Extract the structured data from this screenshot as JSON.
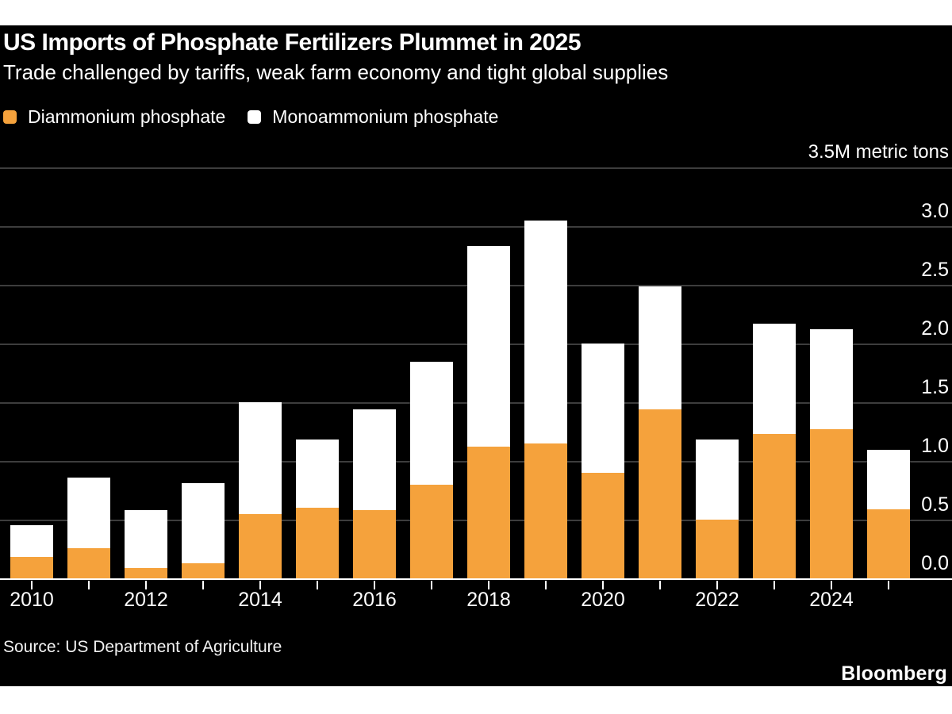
{
  "page": {
    "title": "US Imports of Phosphate Fertilizers Plummet in 2025",
    "subtitle": "Trade challenged by tariffs, weak farm economy and tight global supplies",
    "source": "Source: US Department of Agriculture",
    "brand": "Bloomberg"
  },
  "legend": [
    {
      "label": "Diammonium phosphate",
      "color": "#F5A23C"
    },
    {
      "label": "Monoammonium phosphate",
      "color": "#FFFFFF"
    }
  ],
  "colors": {
    "background": "#000000",
    "page_margin": "#FFFFFF",
    "text": "#FFFFFF",
    "gridline": "#3D3D3D",
    "axis": "#FFFFFF",
    "dap_orange": "#F5A23C",
    "map_white": "#FFFFFF"
  },
  "chart_data": {
    "type": "bar",
    "stacked": true,
    "title": "US Imports of Phosphate Fertilizers Plummet in 2025",
    "subtitle": "Trade challenged by tariffs, weak farm economy and tight global supplies",
    "unit_label": "3.5M metric tons",
    "categories": [
      "2010",
      "2011",
      "2012",
      "2013",
      "2014",
      "2015",
      "2016",
      "2017",
      "2018",
      "2019",
      "2020",
      "2021",
      "2022",
      "2023",
      "2024",
      "2025"
    ],
    "series": [
      {
        "name": "Diammonium phosphate",
        "color": "#F5A23C",
        "values": [
          0.18,
          0.26,
          0.09,
          0.13,
          0.55,
          0.6,
          0.58,
          0.8,
          1.12,
          1.15,
          0.9,
          1.44,
          0.5,
          1.23,
          1.27,
          0.59
        ]
      },
      {
        "name": "Monoammonium phosphate",
        "color": "#FFFFFF",
        "values": [
          0.27,
          0.6,
          0.49,
          0.68,
          0.95,
          0.58,
          0.86,
          1.05,
          1.71,
          1.9,
          1.1,
          1.05,
          0.68,
          0.94,
          0.85,
          0.51
        ]
      }
    ],
    "totals": [
      0.45,
      0.86,
      0.58,
      0.81,
      1.5,
      1.18,
      1.44,
      1.85,
      2.83,
      3.05,
      2.0,
      2.49,
      1.18,
      2.17,
      2.12,
      1.1
    ],
    "ylim": [
      0,
      3.5
    ],
    "ytick_step": 0.5,
    "ytick_labels": [
      "0.0",
      "0.5",
      "1.0",
      "1.5",
      "2.0",
      "2.5",
      "3.0"
    ],
    "x_axis_labels": [
      "2010",
      "2012",
      "2014",
      "2016",
      "2018",
      "2020",
      "2022",
      "2024"
    ],
    "grid": true,
    "legend_position": "top-left",
    "source": "Source: US Department of Agriculture"
  }
}
